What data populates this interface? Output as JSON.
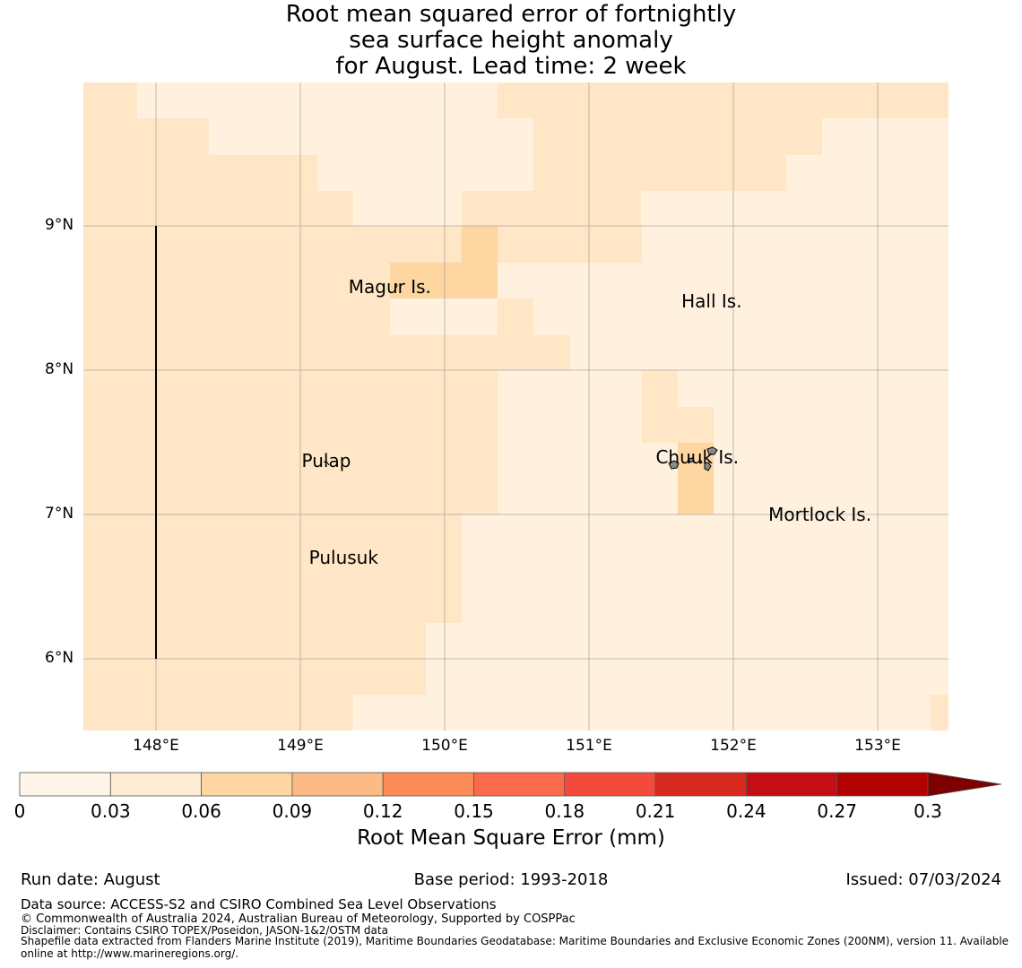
{
  "title": {
    "line1": "Root mean squared error of fortnightly",
    "line2": "sea surface height anomaly",
    "line3": "for August. Lead time: 2 week"
  },
  "map": {
    "lat_ticks": [
      {
        "value": 9,
        "label": "9°N"
      },
      {
        "value": 8,
        "label": "8°N"
      },
      {
        "value": 7,
        "label": "7°N"
      },
      {
        "value": 6,
        "label": "6°N"
      }
    ],
    "lon_ticks": [
      {
        "value": 148,
        "label": "148°E"
      },
      {
        "value": 149,
        "label": "149°E"
      },
      {
        "value": 150,
        "label": "150°E"
      },
      {
        "value": 151,
        "label": "151°E"
      },
      {
        "value": 152,
        "label": "152°E"
      },
      {
        "value": 153,
        "label": "153°E"
      }
    ],
    "places": [
      {
        "name": "Magur Is.",
        "lon": 149.62,
        "lat": 8.58
      },
      {
        "name": "Hall Is.",
        "lon": 151.85,
        "lat": 8.48
      },
      {
        "name": "Pulap",
        "lon": 149.18,
        "lat": 7.37
      },
      {
        "name": "Chuuk Is.",
        "lon": 151.75,
        "lat": 7.4
      },
      {
        "name": "Mortlock Is.",
        "lon": 152.6,
        "lat": 7.0
      },
      {
        "name": "Pulusuk",
        "lon": 149.3,
        "lat": 6.7
      }
    ],
    "colors": {
      "c0": "#fff1de",
      "c1": "#fee6c6",
      "c2": "#fdd6a1",
      "grid": "#999999",
      "island_fill": "#8a8a8a"
    }
  },
  "colorbar": {
    "ticks": [
      "0",
      "0.03",
      "0.06",
      "0.09",
      "0.12",
      "0.15",
      "0.18",
      "0.21",
      "0.24",
      "0.27",
      "0.3"
    ],
    "colors": [
      "#fff5e8",
      "#feebd3",
      "#fdd6a1",
      "#fcba84",
      "#fc8d59",
      "#fc6a4c",
      "#f44a3b",
      "#d8291f",
      "#c40e14",
      "#b30000"
    ],
    "extend_color": "#7f0000",
    "label": "Root Mean Square Error (mm)"
  },
  "footer": {
    "run_date": "Run date: August",
    "base_period": "Base period: 1993-2018",
    "issued": "Issued: 07/03/2024",
    "data_source": "Data source: ACCESS-S2 and CSIRO Combined Sea Level Observations",
    "copyright": "© Commonwealth of Australia 2024, Australian Bureau of Meteorology, Supported by COSPPac",
    "disclaimer": "Disclaimer: Contains CSIRO TOPEX/Poseidon, JASON-1&2/OSTM data",
    "shapefile_line1": "Shapefile data extracted from Flanders Marine Institute (2019), Maritime Boundaries Geodatabase: Maritime Boundaries and Exclusive Economic Zones (200NM), version 11. Available",
    "shapefile_line2": "online at http://www.marineregions.org/."
  }
}
